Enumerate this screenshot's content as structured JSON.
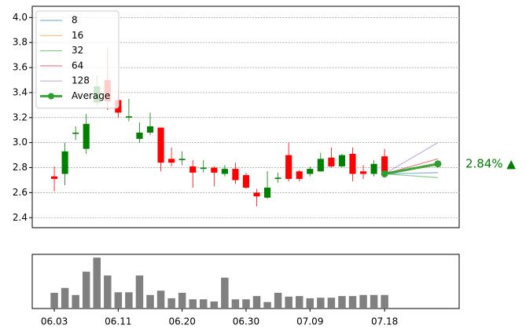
{
  "chart_data": [
    {
      "type": "candlestick",
      "open": [
        2.73,
        2.75,
        3.07,
        2.95,
        3.32,
        3.5,
        3.34,
        3.2,
        3.03,
        3.08,
        3.12,
        2.87,
        2.86,
        2.81,
        2.79,
        2.8,
        2.75,
        2.79,
        2.74,
        2.6,
        2.56,
        2.71,
        2.9,
        2.77,
        2.75,
        2.77,
        2.88,
        2.81,
        2.91,
        2.77,
        2.75,
        2.89
      ],
      "high": [
        2.81,
        3.0,
        3.13,
        3.23,
        3.54,
        3.76,
        3.42,
        3.35,
        3.16,
        3.24,
        3.12,
        2.96,
        2.93,
        2.86,
        2.86,
        2.81,
        2.82,
        2.84,
        2.76,
        2.63,
        2.77,
        2.76,
        3.0,
        2.78,
        2.81,
        2.92,
        2.96,
        2.91,
        2.96,
        2.82,
        2.86,
        2.95
      ],
      "low": [
        2.61,
        2.66,
        3.02,
        2.91,
        3.29,
        3.26,
        3.2,
        3.17,
        3.0,
        3.06,
        2.77,
        2.81,
        2.82,
        2.64,
        2.76,
        2.65,
        2.73,
        2.67,
        2.63,
        2.49,
        2.55,
        2.68,
        2.69,
        2.69,
        2.73,
        2.77,
        2.8,
        2.8,
        2.69,
        2.71,
        2.73,
        2.72
      ],
      "close": [
        2.71,
        2.93,
        3.08,
        3.15,
        3.45,
        3.33,
        3.24,
        3.21,
        3.08,
        3.13,
        2.84,
        2.84,
        2.87,
        2.76,
        2.8,
        2.76,
        2.79,
        2.7,
        2.64,
        2.57,
        2.64,
        2.72,
        2.71,
        2.71,
        2.79,
        2.87,
        2.81,
        2.9,
        2.75,
        2.75,
        2.83,
        2.75
      ],
      "up_color": "#008000",
      "down_color": "#ff0000",
      "series": [
        {
          "name": "8",
          "color": "#1f77b4",
          "x": [
            31,
            36
          ],
          "values": [
            2.75,
            2.76
          ]
        },
        {
          "name": "16",
          "color": "#ff7f0e",
          "x": [
            31,
            36
          ],
          "values": [
            2.75,
            2.82
          ]
        },
        {
          "name": "32",
          "color": "#2ca02c",
          "x": [
            31,
            36
          ],
          "values": [
            2.75,
            2.72
          ]
        },
        {
          "name": "64",
          "color": "#d62728",
          "x": [
            31,
            36
          ],
          "values": [
            2.75,
            2.87
          ]
        },
        {
          "name": "128",
          "color": "#9467bd",
          "x": [
            31,
            36
          ],
          "values": [
            2.75,
            3.0
          ]
        },
        {
          "name": "Average",
          "color": "#2ca02c",
          "x": [
            31,
            36
          ],
          "values": [
            2.75,
            2.83
          ]
        }
      ],
      "annotation": "2.84% ▲",
      "xlim": [
        -2.07,
        38.0
      ],
      "ylim": [
        2.32,
        4.09
      ],
      "yticks": [
        2.4,
        2.6,
        2.8,
        {
          "value": 3,
          "label": "3.0"
        },
        3.2,
        3.4,
        3.6,
        3.8,
        {
          "value": 4,
          "label": "4.0"
        }
      ],
      "grid": true,
      "legend": "upper left"
    },
    {
      "type": "bar",
      "categories": [
        "06.03",
        null,
        null,
        null,
        null,
        null,
        "06.11",
        null,
        null,
        null,
        null,
        null,
        "06.20",
        null,
        null,
        null,
        null,
        null,
        "06.30",
        null,
        null,
        null,
        null,
        null,
        "07.09",
        null,
        null,
        null,
        null,
        null,
        null,
        "07.18"
      ],
      "values": [
        29,
        38,
        25,
        68,
        94,
        61,
        30,
        30,
        61,
        25,
        33,
        19,
        29,
        17,
        17,
        13,
        57,
        17,
        17,
        23,
        12,
        29,
        22,
        23,
        19,
        20,
        20,
        23,
        23,
        25,
        25,
        25
      ],
      "color": "#808080",
      "xlim": [
        -2.07,
        38.0
      ],
      "ylim": [
        0,
        100
      ]
    }
  ]
}
